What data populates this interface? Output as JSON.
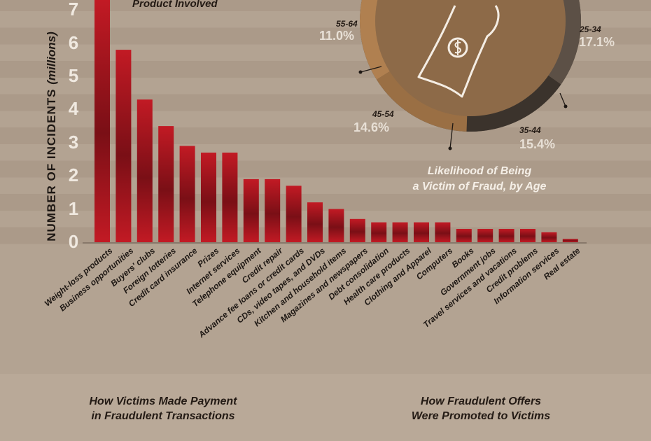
{
  "header": {
    "subheading": "Product Involved"
  },
  "chart_data": [
    {
      "type": "bar",
      "ylabel": "NUMBER OF INCIDENTS",
      "ylabel_unit": "(millions)",
      "yticks": [
        "0",
        "1",
        "2",
        "3",
        "4",
        "5",
        "6",
        "7"
      ],
      "ylim": [
        0,
        7.3
      ],
      "categories": [
        "Weight-loss products",
        "Business opportunities",
        "Buyers' clubs",
        "Foreign lotteries",
        "Credit card insurance",
        "Prizes",
        "Internet services",
        "Telephone equipment",
        "Credit repair",
        "Advance fee loans or credit cards",
        "CDs, video tapes, and DVDs",
        "Kitchen and household items",
        "Magazines and newspapers",
        "Debt consolidation",
        "Health care products",
        "Clothing and Apparel",
        "Computers",
        "Books",
        "Government jobs",
        "Travel services and vacations",
        "Credit problems",
        "Information services",
        "Real estate"
      ],
      "values": [
        7.3,
        5.8,
        4.3,
        3.5,
        2.9,
        2.7,
        2.7,
        1.9,
        1.9,
        1.7,
        1.2,
        1.0,
        0.7,
        0.6,
        0.6,
        0.6,
        0.6,
        0.4,
        0.4,
        0.4,
        0.4,
        0.3,
        0.1
      ],
      "bar_color": "#c21a24",
      "grid": false
    },
    {
      "type": "pie",
      "title": "Likelihood of Being a Victim of Fraud, by Age",
      "title_lines": [
        "Likelihood of Being",
        "a Victim of Fraud, by Age"
      ],
      "slices": [
        {
          "label": "25-34",
          "value": "17.1%"
        },
        {
          "label": "35-44",
          "value": "15.4%"
        },
        {
          "label": "45-54",
          "value": "14.6%"
        },
        {
          "label": "55-64",
          "value": "11.0%"
        }
      ]
    }
  ],
  "footer": {
    "left_lines": [
      "How Victims Made Payment",
      "in Fraudulent Transactions"
    ],
    "right_lines": [
      "How Fraudulent Offers",
      "Were Promoted to Victims"
    ]
  },
  "colors": {
    "bar": "#c21a24",
    "background": "#b3a392",
    "stripe": "#a49481"
  }
}
